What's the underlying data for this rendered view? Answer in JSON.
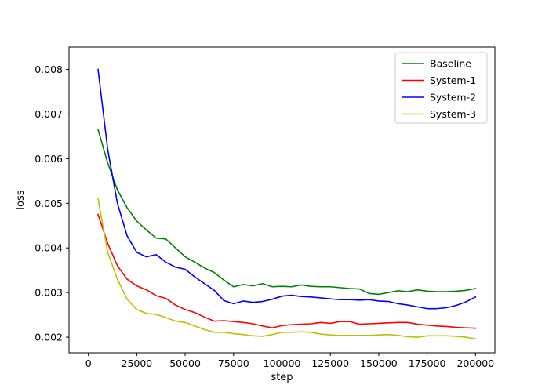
{
  "chart_data": {
    "type": "line",
    "title": "",
    "xlabel": "step",
    "ylabel": "loss",
    "xlim": [
      -10000,
      210000
    ],
    "ylim": [
      0.00165,
      0.0085
    ],
    "xticks": [
      0,
      25000,
      50000,
      75000,
      100000,
      125000,
      150000,
      175000,
      200000
    ],
    "yticks": [
      0.002,
      0.003,
      0.004,
      0.005,
      0.006,
      0.007,
      0.008
    ],
    "xtick_labels": [
      "0",
      "25000",
      "50000",
      "75000",
      "100000",
      "125000",
      "150000",
      "175000",
      "200000"
    ],
    "ytick_labels": [
      "0.002",
      "0.003",
      "0.004",
      "0.005",
      "0.006",
      "0.007",
      "0.008"
    ],
    "grid": false,
    "legend_position": "top-right",
    "x": [
      5000,
      10000,
      15000,
      20000,
      25000,
      30000,
      35000,
      40000,
      45000,
      50000,
      55000,
      60000,
      65000,
      70000,
      75000,
      80000,
      85000,
      90000,
      95000,
      100000,
      105000,
      110000,
      115000,
      120000,
      125000,
      130000,
      135000,
      140000,
      145000,
      150000,
      155000,
      160000,
      165000,
      170000,
      175000,
      180000,
      185000,
      190000,
      195000,
      200000
    ],
    "series": [
      {
        "name": "Baseline",
        "color": "#008000",
        "values": [
          0.00665,
          0.0059,
          0.0053,
          0.0049,
          0.0046,
          0.0044,
          0.00422,
          0.0042,
          0.004,
          0.0038,
          0.00368,
          0.00355,
          0.00345,
          0.00328,
          0.00313,
          0.00318,
          0.00315,
          0.0032,
          0.00313,
          0.00314,
          0.00313,
          0.00317,
          0.00314,
          0.00313,
          0.00313,
          0.00311,
          0.00309,
          0.00308,
          0.00298,
          0.00296,
          0.003,
          0.00304,
          0.00302,
          0.00306,
          0.00303,
          0.00302,
          0.00302,
          0.00303,
          0.00305,
          0.00309
        ]
      },
      {
        "name": "System-1",
        "color": "#ff0000",
        "values": [
          0.00475,
          0.0041,
          0.0036,
          0.0033,
          0.00315,
          0.00306,
          0.00293,
          0.00287,
          0.00272,
          0.00262,
          0.00255,
          0.00245,
          0.00236,
          0.00237,
          0.00235,
          0.00233,
          0.0023,
          0.00225,
          0.00221,
          0.00226,
          0.00228,
          0.00229,
          0.0023,
          0.00233,
          0.00231,
          0.00235,
          0.00235,
          0.00229,
          0.0023,
          0.00231,
          0.00232,
          0.00233,
          0.00233,
          0.00229,
          0.00227,
          0.00225,
          0.00224,
          0.00222,
          0.00221,
          0.0022
        ]
      },
      {
        "name": "System-2",
        "color": "#0000ff",
        "values": [
          0.008,
          0.0062,
          0.005,
          0.00427,
          0.0039,
          0.0038,
          0.00385,
          0.00368,
          0.00357,
          0.00352,
          0.00335,
          0.0032,
          0.00305,
          0.00282,
          0.00275,
          0.00281,
          0.00278,
          0.0028,
          0.00285,
          0.00292,
          0.00294,
          0.00291,
          0.0029,
          0.00288,
          0.00286,
          0.00284,
          0.00284,
          0.00283,
          0.00284,
          0.00281,
          0.0028,
          0.00275,
          0.00272,
          0.00268,
          0.00264,
          0.00264,
          0.00266,
          0.00271,
          0.00279,
          0.0029
        ]
      },
      {
        "name": "System-3",
        "color": "#bfbf00",
        "values": [
          0.0051,
          0.0039,
          0.0033,
          0.00285,
          0.00262,
          0.00253,
          0.00251,
          0.00244,
          0.00236,
          0.00233,
          0.00225,
          0.00217,
          0.00211,
          0.00211,
          0.00208,
          0.00206,
          0.00203,
          0.00202,
          0.00206,
          0.00211,
          0.00211,
          0.00212,
          0.00211,
          0.00207,
          0.00205,
          0.00204,
          0.00204,
          0.00204,
          0.00204,
          0.00205,
          0.00206,
          0.00204,
          0.00201,
          0.002,
          0.00203,
          0.00203,
          0.00203,
          0.00202,
          0.002,
          0.00196
        ]
      }
    ]
  }
}
